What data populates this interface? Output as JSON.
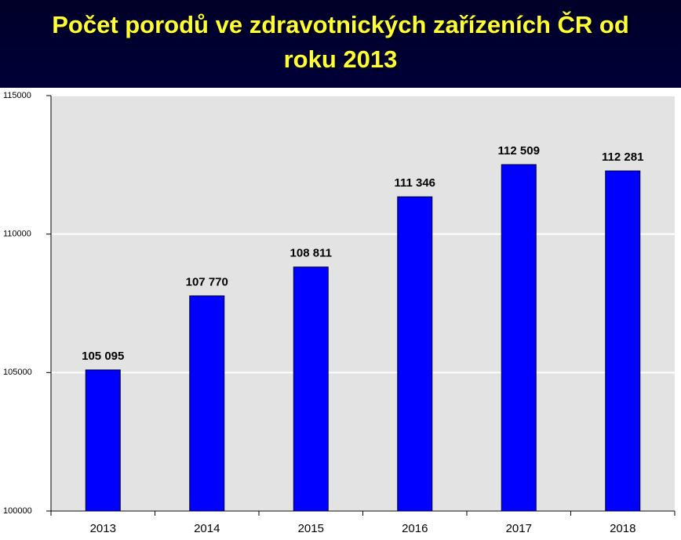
{
  "chart_data": {
    "type": "bar",
    "title": "Počet porodů ve zdravotnických zařízeních ČR od roku 2013",
    "categories": [
      "2013",
      "2014",
      "2015",
      "2016",
      "2017",
      "2018"
    ],
    "values": [
      105095,
      107770,
      108811,
      111346,
      112509,
      112281
    ],
    "value_labels": [
      "105 095",
      "107 770",
      "108 811",
      "111 346",
      "112 509",
      "112 281"
    ],
    "color": "#0000ff",
    "ylim": [
      100000,
      115000
    ],
    "yticks": [
      100000,
      105000,
      110000,
      115000
    ],
    "grid": true
  }
}
